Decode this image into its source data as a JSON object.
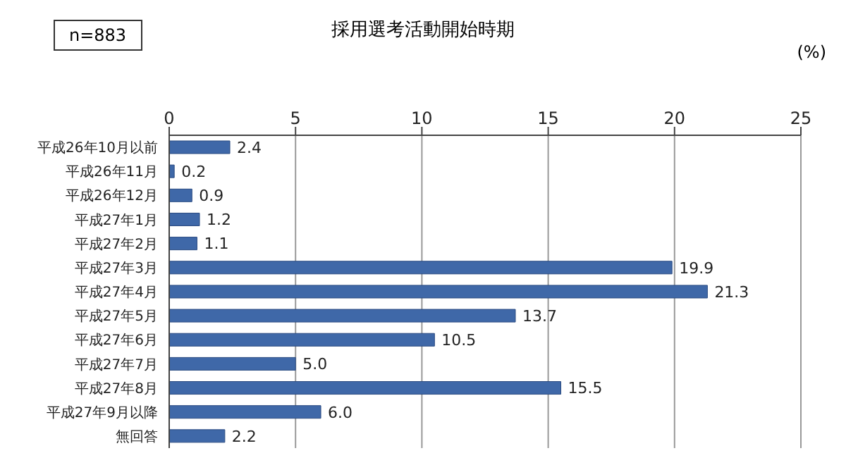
{
  "chart_data": {
    "type": "bar",
    "orientation": "horizontal",
    "title": "採用選考活動開始時期",
    "xlabel": "(%)",
    "annotations": [
      "n=883"
    ],
    "categories": [
      "平成26年10月以前",
      "平成26年11月",
      "平成26年12月",
      "平成27年1月",
      "平成27年2月",
      "平成27年3月",
      "平成27年4月",
      "平成27年5月",
      "平成27年6月",
      "平成27年7月",
      "平成27年8月",
      "平成27年9月以降",
      "無回答"
    ],
    "values": [
      2.4,
      0.2,
      0.9,
      1.2,
      1.1,
      19.9,
      21.3,
      13.7,
      10.5,
      5.0,
      15.5,
      6.0,
      2.2
    ],
    "value_labels": [
      "2.4",
      "0.2",
      "0.9",
      "1.2",
      "1.1",
      "19.9",
      "21.3",
      "13.7",
      "10.5",
      "5.0",
      "15.5",
      "6.0",
      "2.2"
    ],
    "color": "#3f68a8",
    "xlim": [
      0,
      25
    ],
    "xticks": [
      0,
      5,
      10,
      15,
      20,
      25
    ],
    "grid": "x"
  }
}
